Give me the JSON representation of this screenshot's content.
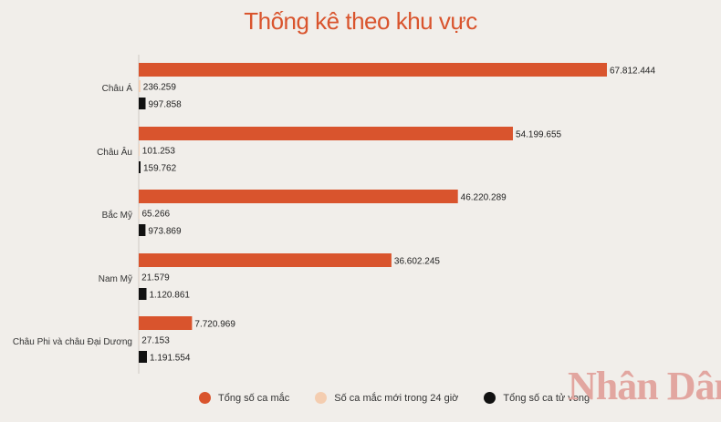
{
  "title": "Thống kê theo khu vực",
  "watermark_text": "Nhân Dân",
  "colors": {
    "total_cases": "#d9542d",
    "new_cases": "#f4cdb0",
    "deaths": "#111111",
    "title": "#d9542d",
    "background": "#f1eeea"
  },
  "chart_data": {
    "type": "bar",
    "orientation": "horizontal",
    "title": "Thống kê theo khu vực",
    "categories": [
      "Châu Á",
      "Châu Âu",
      "Bắc Mỹ",
      "Nam Mỹ",
      "Châu Phi và châu Đại Dương"
    ],
    "series": [
      {
        "name": "Tổng số ca mắc",
        "values": [
          67812444,
          54199655,
          46220289,
          36602245,
          7720969
        ],
        "labels": [
          "67.812.444",
          "54.199.655",
          "46.220.289",
          "36.602.245",
          "7.720.969"
        ]
      },
      {
        "name": "Số ca mắc mới trong 24 giờ",
        "values": [
          236259,
          101253,
          65266,
          21579,
          27153
        ],
        "labels": [
          "236.259",
          "101.253",
          "65.266",
          "21.579",
          "27.153"
        ]
      },
      {
        "name": "Tổng số ca tử vong",
        "values": [
          997858,
          159762,
          973869,
          1120861,
          1191554
        ],
        "labels": [
          "997.858",
          "159.762",
          "973.869",
          "1.120.861",
          "1.191.554"
        ]
      }
    ],
    "legend_position": "bottom",
    "grid": false,
    "xlim": [
      0,
      67812444
    ]
  }
}
